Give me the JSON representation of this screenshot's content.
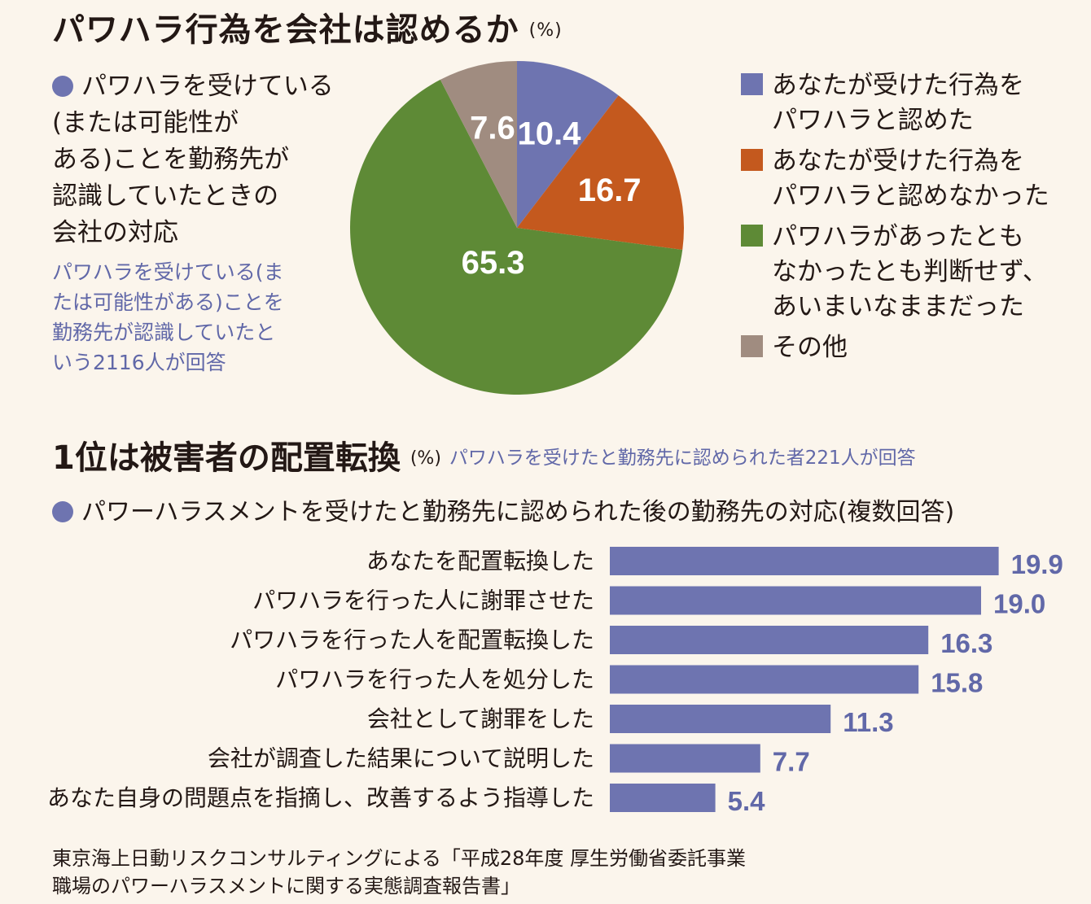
{
  "colors": {
    "blue": "#6e74b0",
    "orange": "#c4591e",
    "green": "#5e8a36",
    "gray": "#a08c80",
    "bar": "#6e74b0",
    "bar_label": "#6168a8"
  },
  "section1": {
    "title": "パワハラ行為を会社は認めるか",
    "unit": "(%)",
    "question_lines": [
      "パワハラを受けている",
      "(または可能性が",
      "ある)ことを勤務先が",
      "認識していたときの",
      "会社の対応"
    ],
    "note_lines": [
      "パワハラを受けている(ま",
      "たは可能性がある)ことを",
      "勤務先が認識していたと",
      "いう2116人が回答"
    ]
  },
  "section2": {
    "title": "1位は被害者の配置転換",
    "unit": "(%)",
    "respondents": "パワハラを受けたと勤務先に認められた者221人が回答",
    "question": "パワーハラスメントを受けたと勤務先に認められた後の勤務先の対応(複数回答)"
  },
  "source_lines": [
    "東京海上日動リスクコンサルティングによる「平成28年度 厚生労働省委託事業",
    "職場のパワーハラスメントに関する実態調査報告書」"
  ],
  "chart_data": [
    {
      "type": "pie",
      "title": "パワハラ行為を会社は認めるか",
      "unit": "%",
      "slices": [
        {
          "label_lines": [
            "あなたが受けた行為を",
            "パワハラと認めた"
          ],
          "value": 10.4,
          "value_label": "10.4",
          "color": "#6e74b0"
        },
        {
          "label_lines": [
            "あなたが受けた行為を",
            "パワハラと認めなかった"
          ],
          "value": 16.7,
          "value_label": "16.7",
          "color": "#c4591e"
        },
        {
          "label_lines": [
            "パワハラがあったとも",
            "なかったとも判断せず、",
            "あいまいなままだった"
          ],
          "value": 65.3,
          "value_label": "65.3",
          "color": "#5e8a36"
        },
        {
          "label_lines": [
            "その他"
          ],
          "value": 7.6,
          "value_label": "7.6",
          "color": "#a08c80"
        }
      ]
    },
    {
      "type": "bar",
      "orientation": "horizontal",
      "title": "1位は被害者の配置転換",
      "unit": "%",
      "categories": [
        "あなたを配置転換した",
        "パワハラを行った人に謝罪させた",
        "パワハラを行った人を配置転換した",
        "パワハラを行った人を処分した",
        "会社として謝罪をした",
        "会社が調査した結果について説明した",
        "あなた自身の問題点を指摘し、改善するよう指導した"
      ],
      "values": [
        19.9,
        19.0,
        16.3,
        15.8,
        11.3,
        7.7,
        5.4
      ],
      "value_labels": [
        "19.9",
        "19.0",
        "16.3",
        "15.8",
        "11.3",
        "7.7",
        "5.4"
      ]
    }
  ]
}
